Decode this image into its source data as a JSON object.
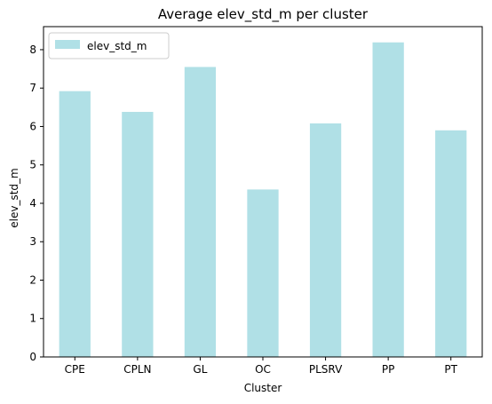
{
  "chart_data": {
    "type": "bar",
    "title": "Average elev_std_m per cluster",
    "xlabel": "Cluster",
    "ylabel": "elev_std_m",
    "categories": [
      "CPE",
      "CPLN",
      "GL",
      "OC",
      "PLSRV",
      "PP",
      "PT"
    ],
    "series": [
      {
        "name": "elev_std_m",
        "values": [
          6.92,
          6.38,
          7.55,
          4.36,
          6.08,
          8.19,
          5.9
        ],
        "color": "#b0e0e6"
      }
    ],
    "ylim": [
      0,
      8.6
    ],
    "yticks": [
      0,
      1,
      2,
      3,
      4,
      5,
      6,
      7,
      8
    ],
    "grid": false,
    "legend": "top-left"
  }
}
